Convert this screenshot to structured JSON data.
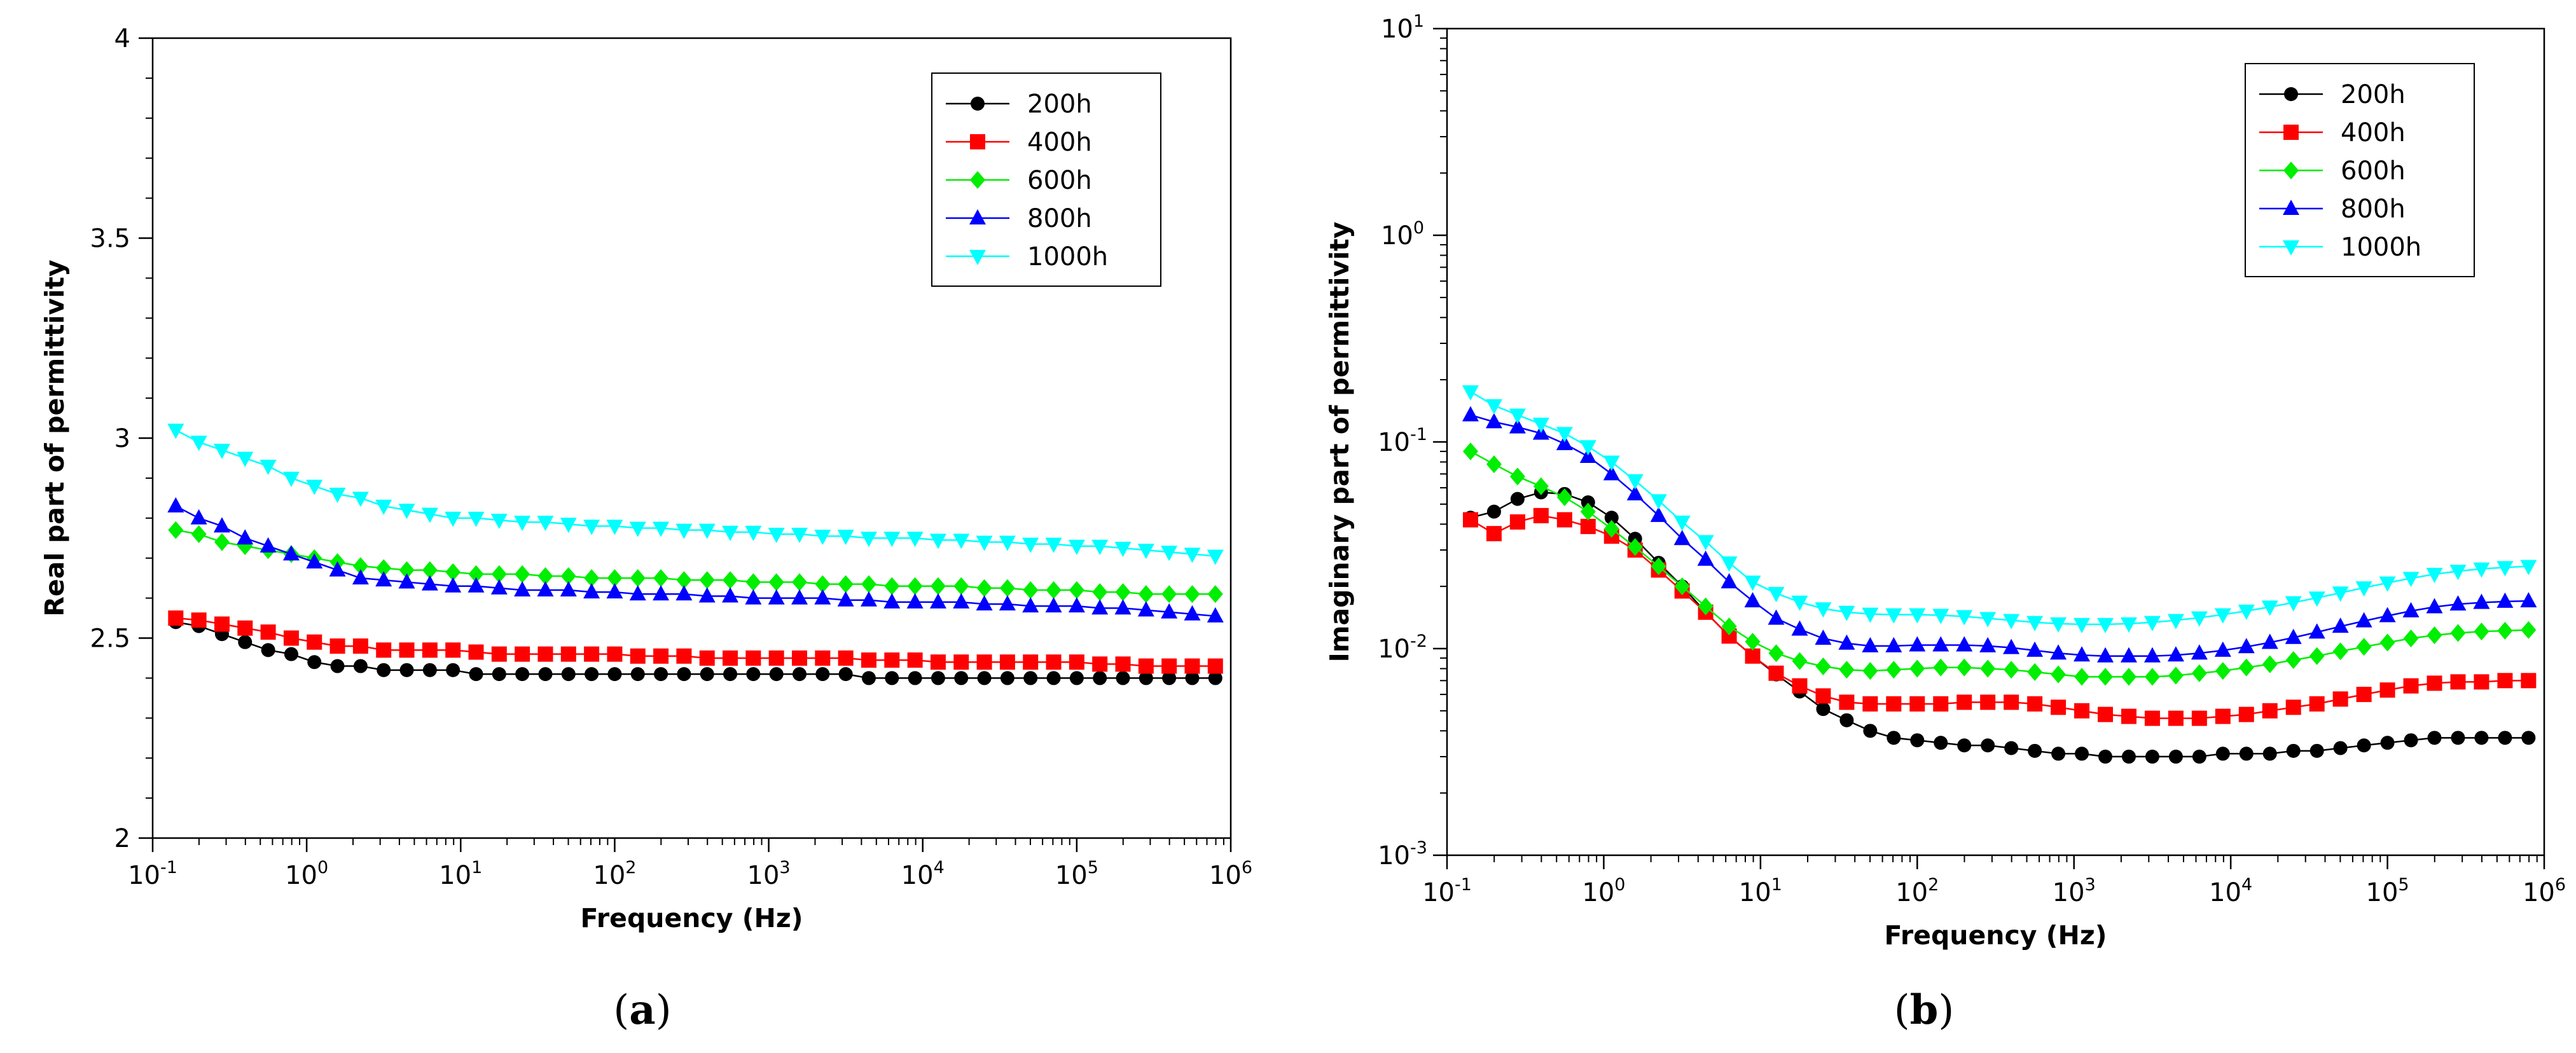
{
  "colors": {
    "200h": "#000000",
    "400h": "#ff0000",
    "600h": "#00ee00",
    "800h": "#0000ff",
    "1000h": "#00ffff"
  },
  "chart_data": [
    {
      "id": "a",
      "type": "line",
      "panel_label": "a",
      "xlabel": "Frequency (Hz)",
      "ylabel": "Real part of permittivity",
      "xscale": "log",
      "yscale": "linear",
      "xlim": [
        0.1,
        1000000
      ],
      "ylim": [
        2,
        4
      ],
      "x_ticks": [
        {
          "base": "10",
          "exp": "-1",
          "value": 0.1
        },
        {
          "base": "10",
          "exp": "0",
          "value": 1
        },
        {
          "base": "10",
          "exp": "1",
          "value": 10
        },
        {
          "base": "10",
          "exp": "2",
          "value": 100
        },
        {
          "base": "10",
          "exp": "3",
          "value": 1000
        },
        {
          "base": "10",
          "exp": "4",
          "value": 10000
        },
        {
          "base": "10",
          "exp": "5",
          "value": 100000
        },
        {
          "base": "10",
          "exp": "6",
          "value": 1000000
        }
      ],
      "y_ticks": [
        {
          "label": "2",
          "value": 2
        },
        {
          "label": "2.5",
          "value": 2.5
        },
        {
          "label": "3",
          "value": 3
        },
        {
          "label": "3.5",
          "value": 3.5
        },
        {
          "label": "4",
          "value": 4
        }
      ],
      "grid": false,
      "legend_position": "top-right",
      "x_log10": [
        -0.85,
        -0.7,
        -0.55,
        -0.4,
        -0.25,
        -0.1,
        0.05,
        0.2,
        0.35,
        0.5,
        0.65,
        0.8,
        0.95,
        1.1,
        1.25,
        1.4,
        1.55,
        1.7,
        1.85,
        2.0,
        2.15,
        2.3,
        2.45,
        2.6,
        2.75,
        2.9,
        3.05,
        3.2,
        3.35,
        3.5,
        3.65,
        3.8,
        3.95,
        4.1,
        4.25,
        4.4,
        4.55,
        4.7,
        4.85,
        5.0,
        5.15,
        5.3,
        5.45,
        5.6,
        5.75,
        5.9
      ],
      "series": [
        {
          "name": "200h",
          "marker": "circle",
          "values": [
            2.54,
            2.53,
            2.51,
            2.49,
            2.47,
            2.46,
            2.44,
            2.43,
            2.43,
            2.42,
            2.42,
            2.42,
            2.42,
            2.41,
            2.41,
            2.41,
            2.41,
            2.41,
            2.41,
            2.41,
            2.41,
            2.41,
            2.41,
            2.41,
            2.41,
            2.41,
            2.41,
            2.41,
            2.41,
            2.41,
            2.4,
            2.4,
            2.4,
            2.4,
            2.4,
            2.4,
            2.4,
            2.4,
            2.4,
            2.4,
            2.4,
            2.4,
            2.4,
            2.4,
            2.4,
            2.4
          ]
        },
        {
          "name": "400h",
          "marker": "square",
          "values": [
            2.55,
            2.545,
            2.535,
            2.525,
            2.515,
            2.5,
            2.49,
            2.48,
            2.48,
            2.47,
            2.47,
            2.47,
            2.47,
            2.465,
            2.46,
            2.46,
            2.46,
            2.46,
            2.46,
            2.46,
            2.455,
            2.455,
            2.455,
            2.45,
            2.45,
            2.45,
            2.45,
            2.45,
            2.45,
            2.45,
            2.445,
            2.445,
            2.445,
            2.44,
            2.44,
            2.44,
            2.44,
            2.44,
            2.44,
            2.44,
            2.435,
            2.435,
            2.43,
            2.43,
            2.43,
            2.43
          ]
        },
        {
          "name": "600h",
          "marker": "diamond",
          "values": [
            2.77,
            2.76,
            2.74,
            2.73,
            2.72,
            2.71,
            2.7,
            2.69,
            2.68,
            2.675,
            2.67,
            2.67,
            2.665,
            2.66,
            2.66,
            2.66,
            2.655,
            2.655,
            2.65,
            2.65,
            2.65,
            2.65,
            2.645,
            2.645,
            2.645,
            2.64,
            2.64,
            2.64,
            2.635,
            2.635,
            2.635,
            2.63,
            2.63,
            2.63,
            2.63,
            2.625,
            2.625,
            2.62,
            2.62,
            2.62,
            2.615,
            2.615,
            2.61,
            2.61,
            2.61,
            2.61
          ]
        },
        {
          "name": "800h",
          "marker": "triangle-up",
          "values": [
            2.83,
            2.8,
            2.78,
            2.75,
            2.73,
            2.71,
            2.69,
            2.67,
            2.65,
            2.645,
            2.64,
            2.635,
            2.63,
            2.63,
            2.625,
            2.62,
            2.62,
            2.62,
            2.615,
            2.615,
            2.61,
            2.61,
            2.61,
            2.605,
            2.605,
            2.6,
            2.6,
            2.6,
            2.6,
            2.595,
            2.595,
            2.59,
            2.59,
            2.59,
            2.59,
            2.585,
            2.585,
            2.58,
            2.58,
            2.58,
            2.575,
            2.575,
            2.57,
            2.565,
            2.56,
            2.555
          ]
        },
        {
          "name": "1000h",
          "marker": "triangle-down",
          "values": [
            3.02,
            2.99,
            2.97,
            2.95,
            2.93,
            2.9,
            2.88,
            2.86,
            2.85,
            2.83,
            2.82,
            2.81,
            2.8,
            2.8,
            2.795,
            2.79,
            2.79,
            2.785,
            2.78,
            2.78,
            2.775,
            2.775,
            2.77,
            2.77,
            2.765,
            2.765,
            2.76,
            2.76,
            2.755,
            2.755,
            2.75,
            2.75,
            2.75,
            2.745,
            2.745,
            2.74,
            2.74,
            2.735,
            2.735,
            2.73,
            2.73,
            2.725,
            2.72,
            2.715,
            2.71,
            2.705
          ]
        }
      ]
    },
    {
      "id": "b",
      "type": "line",
      "panel_label": "b",
      "xlabel": "Frequency (Hz)",
      "ylabel": "Imaginary part of permittivity",
      "xscale": "log",
      "yscale": "log",
      "xlim": [
        0.1,
        1000000
      ],
      "ylim": [
        0.001,
        10
      ],
      "x_ticks": [
        {
          "base": "10",
          "exp": "-1",
          "value": 0.1
        },
        {
          "base": "10",
          "exp": "0",
          "value": 1
        },
        {
          "base": "10",
          "exp": "1",
          "value": 10
        },
        {
          "base": "10",
          "exp": "2",
          "value": 100
        },
        {
          "base": "10",
          "exp": "3",
          "value": 1000
        },
        {
          "base": "10",
          "exp": "4",
          "value": 10000
        },
        {
          "base": "10",
          "exp": "5",
          "value": 100000
        },
        {
          "base": "10",
          "exp": "6",
          "value": 1000000
        }
      ],
      "y_ticks": [
        {
          "base": "10",
          "exp": "-3",
          "value": 0.001
        },
        {
          "base": "10",
          "exp": "-2",
          "value": 0.01
        },
        {
          "base": "10",
          "exp": "-1",
          "value": 0.1
        },
        {
          "base": "10",
          "exp": "0",
          "value": 1
        },
        {
          "base": "10",
          "exp": "1",
          "value": 10
        }
      ],
      "grid": false,
      "legend_position": "top-right",
      "x_log10": [
        -0.85,
        -0.7,
        -0.55,
        -0.4,
        -0.25,
        -0.1,
        0.05,
        0.2,
        0.35,
        0.5,
        0.65,
        0.8,
        0.95,
        1.1,
        1.25,
        1.4,
        1.55,
        1.7,
        1.85,
        2.0,
        2.15,
        2.3,
        2.45,
        2.6,
        2.75,
        2.9,
        3.05,
        3.2,
        3.35,
        3.5,
        3.65,
        3.8,
        3.95,
        4.1,
        4.25,
        4.4,
        4.55,
        4.7,
        4.85,
        5.0,
        5.15,
        5.3,
        5.45,
        5.6,
        5.75,
        5.9
      ],
      "series": [
        {
          "name": "200h",
          "marker": "circle",
          "values": [
            0.043,
            0.046,
            0.053,
            0.057,
            0.056,
            0.051,
            0.043,
            0.034,
            0.026,
            0.02,
            0.015,
            0.0115,
            0.0092,
            0.0075,
            0.0062,
            0.0051,
            0.0045,
            0.004,
            0.0037,
            0.0036,
            0.0035,
            0.0034,
            0.0034,
            0.0033,
            0.0032,
            0.0031,
            0.0031,
            0.003,
            0.003,
            0.003,
            0.003,
            0.003,
            0.0031,
            0.0031,
            0.0031,
            0.0032,
            0.0032,
            0.0033,
            0.0034,
            0.0035,
            0.0036,
            0.0037,
            0.0037,
            0.0037,
            0.0037,
            0.0037
          ]
        },
        {
          "name": "400h",
          "marker": "square",
          "values": [
            0.042,
            0.036,
            0.041,
            0.044,
            0.042,
            0.039,
            0.035,
            0.03,
            0.024,
            0.019,
            0.015,
            0.0115,
            0.0092,
            0.0076,
            0.0066,
            0.0059,
            0.0055,
            0.0054,
            0.0054,
            0.0054,
            0.0054,
            0.0055,
            0.0055,
            0.0055,
            0.0054,
            0.0052,
            0.005,
            0.0048,
            0.0047,
            0.0046,
            0.0046,
            0.0046,
            0.0047,
            0.0048,
            0.005,
            0.0052,
            0.0054,
            0.0057,
            0.006,
            0.0063,
            0.0066,
            0.0068,
            0.0069,
            0.0069,
            0.007,
            0.007
          ]
        },
        {
          "name": "600h",
          "marker": "diamond",
          "values": [
            0.09,
            0.078,
            0.068,
            0.061,
            0.054,
            0.046,
            0.038,
            0.031,
            0.025,
            0.02,
            0.016,
            0.0128,
            0.0108,
            0.0095,
            0.0087,
            0.0082,
            0.0079,
            0.0078,
            0.0079,
            0.008,
            0.0081,
            0.0081,
            0.008,
            0.0079,
            0.0077,
            0.0075,
            0.0073,
            0.0073,
            0.0073,
            0.0073,
            0.0074,
            0.0076,
            0.0078,
            0.0081,
            0.0084,
            0.0088,
            0.0092,
            0.0097,
            0.0102,
            0.0107,
            0.0112,
            0.0116,
            0.0119,
            0.0121,
            0.0122,
            0.0123
          ]
        },
        {
          "name": "800h",
          "marker": "triangle-up",
          "values": [
            0.135,
            0.125,
            0.118,
            0.11,
            0.098,
            0.085,
            0.07,
            0.056,
            0.044,
            0.034,
            0.027,
            0.021,
            0.017,
            0.014,
            0.0124,
            0.0112,
            0.0106,
            0.0103,
            0.0103,
            0.0104,
            0.0104,
            0.0104,
            0.0103,
            0.0101,
            0.0098,
            0.0095,
            0.0093,
            0.0092,
            0.0092,
            0.0092,
            0.0093,
            0.0095,
            0.0098,
            0.0102,
            0.0107,
            0.0113,
            0.012,
            0.0128,
            0.0136,
            0.0144,
            0.0152,
            0.0159,
            0.0164,
            0.0167,
            0.0169,
            0.017
          ]
        },
        {
          "name": "1000h",
          "marker": "triangle-down",
          "values": [
            0.175,
            0.15,
            0.135,
            0.122,
            0.11,
            0.095,
            0.08,
            0.065,
            0.052,
            0.041,
            0.033,
            0.026,
            0.021,
            0.0185,
            0.0168,
            0.0156,
            0.015,
            0.0147,
            0.0146,
            0.0146,
            0.0145,
            0.0143,
            0.014,
            0.0137,
            0.0134,
            0.0132,
            0.0131,
            0.0131,
            0.0132,
            0.0134,
            0.0137,
            0.0141,
            0.0146,
            0.0152,
            0.0159,
            0.0167,
            0.0176,
            0.0186,
            0.0197,
            0.0208,
            0.0219,
            0.0229,
            0.0237,
            0.0243,
            0.0247,
            0.025
          ]
        }
      ]
    }
  ]
}
